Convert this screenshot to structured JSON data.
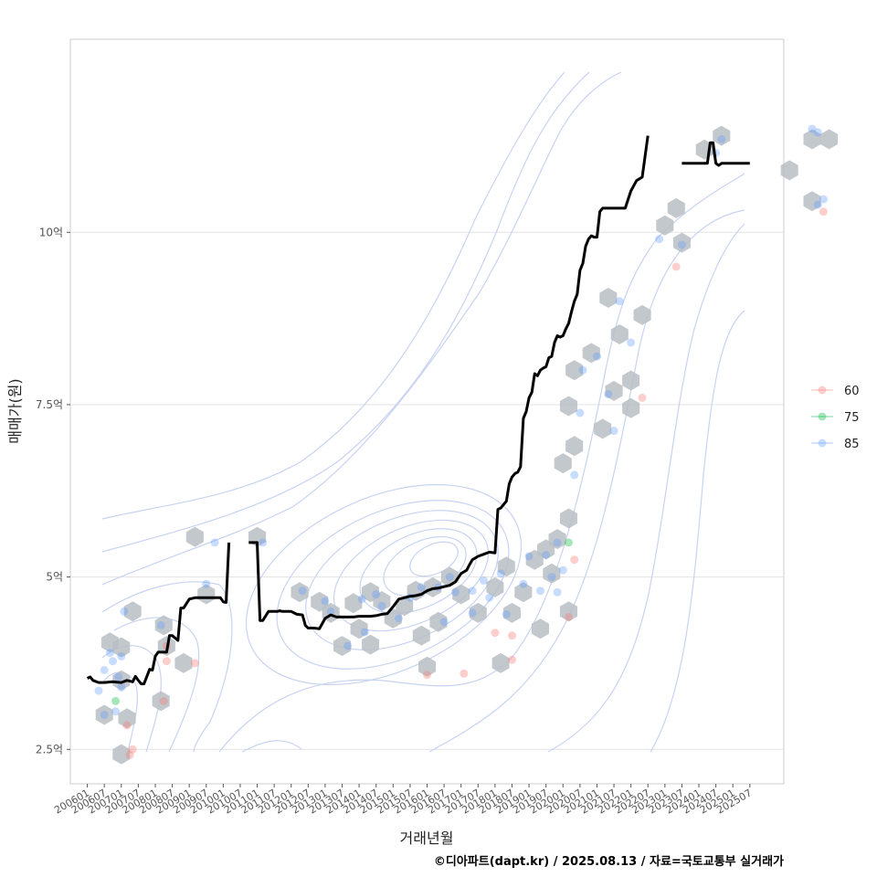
{
  "chart_data": {
    "type": "line",
    "xlabel": "거래년월",
    "ylabel": "매매가(원)",
    "caption": "©디아파트(dapt.kr) / 2025.08.13 / 자료=국토교통부 실거래가",
    "y_ticks": [
      {
        "value": 25000,
        "label": "2.5억"
      },
      {
        "value": 50000,
        "label": "5억"
      },
      {
        "value": 75000,
        "label": "7.5억"
      },
      {
        "value": 100000,
        "label": "10억"
      }
    ],
    "ylim": [
      20000,
      128000
    ],
    "xlim": [
      "2005-07",
      "2026-07"
    ],
    "x_ticks": [
      "200601",
      "200607",
      "200701",
      "200707",
      "200801",
      "200807",
      "200901",
      "200907",
      "201001",
      "201007",
      "201101",
      "201107",
      "201201",
      "201207",
      "201301",
      "201307",
      "201401",
      "201407",
      "201501",
      "201507",
      "201601",
      "201607",
      "201701",
      "201707",
      "201801",
      "201807",
      "201901",
      "201907",
      "202001",
      "202007",
      "202101",
      "202107",
      "202201",
      "202207",
      "202301",
      "202307",
      "202401",
      "202407",
      "202501",
      "202507"
    ],
    "legend": {
      "position": "right",
      "entries": [
        {
          "name": "60",
          "color": "#F8766D"
        },
        {
          "name": "75",
          "color": "#00BA38"
        },
        {
          "name": "85",
          "color": "#619CFF"
        }
      ]
    },
    "grid": true,
    "median_line": {
      "color": "#000000",
      "segments": [
        {
          "x": [
            "2006-01",
            "2006-02",
            "2006-03",
            "2006-05",
            "2006-07",
            "2006-10",
            "2007-01",
            "2007-03",
            "2007-05",
            "2007-06",
            "2007-07",
            "2007-08",
            "2007-09",
            "2007-11",
            "2007-12",
            "2008-01",
            "2008-02",
            "2008-03",
            "2008-05",
            "2008-06",
            "2008-07",
            "2008-09",
            "2008-10",
            "2008-11",
            "2009-01",
            "2009-03",
            "2009-06",
            "2009-09",
            "2009-12",
            "2010-01",
            "2010-02",
            "2010-03"
          ],
          "y": [
            35300,
            35500,
            35000,
            34700,
            34700,
            34800,
            34700,
            35000,
            34800,
            35600,
            35000,
            34500,
            34500,
            36600,
            36500,
            38500,
            39100,
            39100,
            39100,
            41500,
            41500,
            40800,
            45500,
            45500,
            46800,
            47000,
            47000,
            47000,
            47000,
            46400,
            46300,
            55000
          ]
        },
        {
          "x": [
            "2010-10",
            "2010-11",
            "2011-01",
            "2011-02",
            "2011-03",
            "2011-05",
            "2011-08",
            "2011-09",
            "2011-10",
            "2011-11",
            "2011-12",
            "2012-01",
            "2012-03",
            "2012-05",
            "2012-06",
            "2012-07",
            "2012-09",
            "2012-11",
            "2013-01",
            "2013-03",
            "2013-05",
            "2013-06",
            "2013-07",
            "2013-09",
            "2013-11",
            "2014-01",
            "2014-03",
            "2014-05",
            "2014-07",
            "2014-09",
            "2014-11",
            "2015-01",
            "2015-03",
            "2015-05",
            "2015-07",
            "2015-09",
            "2015-11",
            "2016-01",
            "2016-03",
            "2016-05",
            "2016-07",
            "2016-09",
            "2016-11",
            "2017-01",
            "2017-03",
            "2017-04",
            "2017-05",
            "2017-07",
            "2017-09",
            "2017-11",
            "2018-01",
            "2018-02",
            "2018-03",
            "2018-04",
            "2018-05",
            "2018-06",
            "2018-07",
            "2018-08",
            "2018-09",
            "2018-10",
            "2018-11",
            "2018-12",
            "2019-01",
            "2019-02",
            "2019-03",
            "2019-04",
            "2019-05",
            "2019-06",
            "2019-07",
            "2019-08",
            "2019-09",
            "2019-10",
            "2019-11",
            "2019-12",
            "2020-01",
            "2020-02",
            "2020-03",
            "2020-04",
            "2020-05",
            "2020-06",
            "2020-07",
            "2020-08",
            "2020-09",
            "2020-10",
            "2020-11",
            "2020-12",
            "2021-01",
            "2021-02",
            "2021-03",
            "2021-05",
            "2021-07",
            "2021-09",
            "2021-11",
            "2022-01",
            "2022-03",
            "2022-05",
            "2022-07"
          ],
          "y": [
            55000,
            55000,
            55000,
            43700,
            43700,
            45000,
            45000,
            45100,
            45000,
            45000,
            45000,
            45000,
            44600,
            44500,
            43000,
            42600,
            42600,
            42500,
            44000,
            44500,
            44200,
            44200,
            44200,
            44200,
            44200,
            44300,
            44300,
            44300,
            44400,
            44600,
            44700,
            45700,
            46800,
            47000,
            47200,
            47300,
            47500,
            48000,
            48300,
            48400,
            48600,
            48800,
            49300,
            50500,
            51000,
            51800,
            52500,
            53000,
            53300,
            53600,
            53500,
            59800,
            60000,
            60500,
            61000,
            63500,
            64500,
            65000,
            65200,
            66000,
            73000,
            74000,
            76000,
            76800,
            79500,
            79200,
            80000,
            80300,
            80500,
            81800,
            82000,
            84000,
            85000,
            84800,
            85000,
            86000,
            86800,
            88500,
            90000,
            91000,
            94500,
            95500,
            98000,
            99000,
            99500,
            99300,
            99300,
            103000,
            103500,
            103500,
            103500,
            103500,
            103500,
            106000,
            107500,
            108000,
            114000
          ]
        },
        {
          "x": [
            "2023-07",
            "2023-09",
            "2023-11",
            "2024-01",
            "2024-03",
            "2024-04",
            "2024-05",
            "2024-06",
            "2024-07",
            "2024-08",
            "2024-09",
            "2024-10",
            "2024-12",
            "2025-02",
            "2025-04",
            "2025-07"
          ],
          "y": [
            110000,
            110000,
            110000,
            110000,
            110000,
            110000,
            113000,
            113000,
            110000,
            109700,
            110000,
            110000,
            110000,
            110000,
            110000,
            110000
          ]
        }
      ]
    }
  }
}
